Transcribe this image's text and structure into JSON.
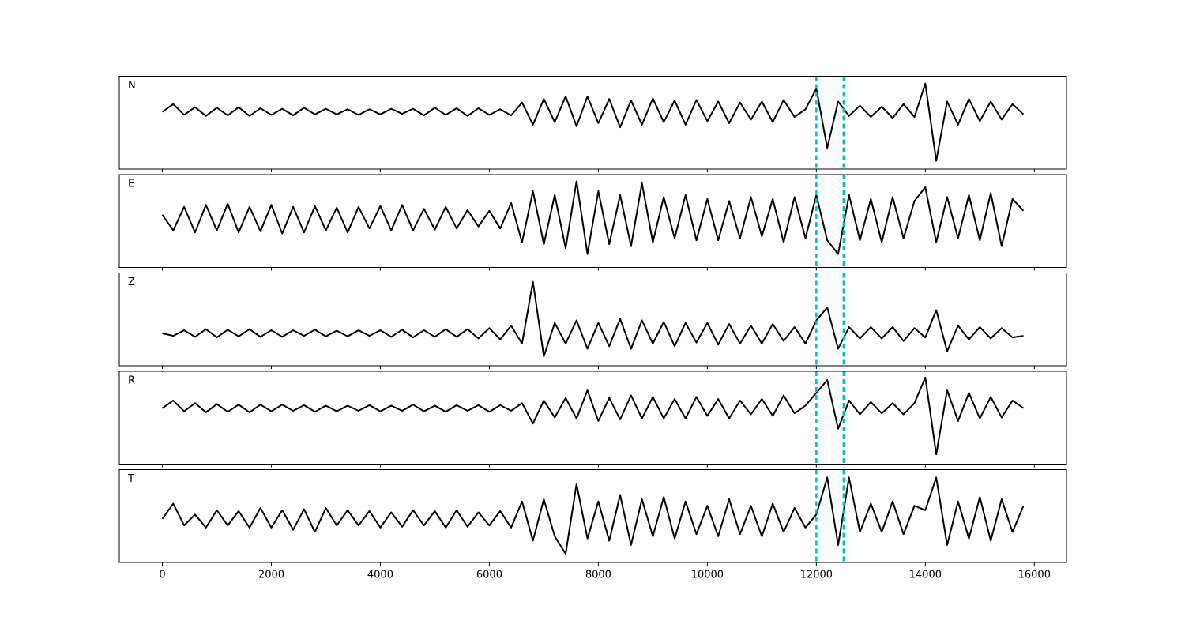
{
  "chart_data": [
    {
      "type": "line",
      "label": "N",
      "color": "#000000",
      "xlim": [
        -790,
        16590
      ],
      "ylim": [
        -1.11,
        0.69
      ],
      "xticks": [
        0,
        2000,
        4000,
        6000,
        8000,
        10000,
        12000,
        14000,
        16000
      ],
      "vlines": [
        12000,
        12500
      ],
      "vline_color": "#00bfbf",
      "x": [
        0,
        200,
        400,
        600,
        800,
        1000,
        1200,
        1400,
        1600,
        1800,
        2000,
        2200,
        2400,
        2600,
        2800,
        3000,
        3200,
        3400,
        3600,
        3800,
        4000,
        4200,
        4400,
        4600,
        4800,
        5000,
        5200,
        5400,
        5600,
        5800,
        6000,
        6200,
        6400,
        6600,
        6800,
        7000,
        7200,
        7400,
        7600,
        7800,
        8000,
        8200,
        8400,
        8600,
        8800,
        9000,
        9200,
        9400,
        9600,
        9800,
        10000,
        10200,
        10400,
        10600,
        10800,
        11000,
        11200,
        11400,
        11600,
        11800,
        12000,
        12200,
        12400,
        12600,
        12800,
        13000,
        13200,
        13400,
        13600,
        13800,
        14000,
        14200,
        14400,
        14600,
        14800,
        15000,
        15200,
        15400,
        15600,
        15800
      ],
      "values": [
        0.0,
        0.15,
        -0.06,
        0.09,
        -0.08,
        0.08,
        -0.07,
        0.09,
        -0.08,
        0.07,
        -0.06,
        0.06,
        -0.07,
        0.08,
        -0.05,
        0.06,
        -0.05,
        0.05,
        -0.06,
        0.05,
        -0.05,
        0.06,
        -0.04,
        0.06,
        -0.07,
        0.08,
        -0.06,
        0.07,
        -0.08,
        0.07,
        -0.06,
        0.05,
        -0.07,
        0.18,
        -0.25,
        0.25,
        -0.2,
        0.3,
        -0.28,
        0.3,
        -0.22,
        0.25,
        -0.3,
        0.22,
        -0.25,
        0.26,
        -0.2,
        0.22,
        -0.25,
        0.23,
        -0.18,
        0.2,
        -0.22,
        0.18,
        -0.15,
        0.2,
        -0.2,
        0.23,
        -0.1,
        0.05,
        0.45,
        -0.7,
        0.2,
        -0.08,
        0.12,
        -0.1,
        0.1,
        -0.12,
        0.15,
        -0.1,
        0.55,
        -0.95,
        0.2,
        -0.25,
        0.25,
        -0.18,
        0.2,
        -0.15,
        0.15,
        -0.05
      ]
    },
    {
      "type": "line",
      "label": "E",
      "color": "#000000",
      "xlim": [
        -790,
        16590
      ],
      "ylim": [
        -1.24,
        1.12
      ],
      "xticks": [
        0,
        2000,
        4000,
        6000,
        8000,
        10000,
        12000,
        14000,
        16000
      ],
      "vlines": [
        12000,
        12500
      ],
      "vline_color": "#00bfbf",
      "x": [
        0,
        200,
        400,
        600,
        800,
        1000,
        1200,
        1400,
        1600,
        1800,
        2000,
        2200,
        2400,
        2600,
        2800,
        3000,
        3200,
        3400,
        3600,
        3800,
        4000,
        4200,
        4400,
        4600,
        4800,
        5000,
        5200,
        5400,
        5600,
        5800,
        6000,
        6200,
        6400,
        6600,
        6800,
        7000,
        7200,
        7400,
        7600,
        7800,
        8000,
        8200,
        8400,
        8600,
        8800,
        9000,
        9200,
        9400,
        9600,
        9800,
        10000,
        10200,
        10400,
        10600,
        10800,
        11000,
        11200,
        11400,
        11600,
        11800,
        12000,
        12200,
        12400,
        12600,
        12800,
        13000,
        13200,
        13400,
        13600,
        13800,
        14000,
        14200,
        14400,
        14600,
        14800,
        15000,
        15200,
        15400,
        15600,
        15800
      ],
      "values": [
        0.1,
        -0.3,
        0.3,
        -0.35,
        0.35,
        -0.3,
        0.38,
        -0.35,
        0.3,
        -0.32,
        0.35,
        -0.38,
        0.3,
        -0.35,
        0.32,
        -0.3,
        0.28,
        -0.35,
        0.3,
        -0.25,
        0.32,
        -0.3,
        0.35,
        -0.3,
        0.25,
        -0.28,
        0.3,
        -0.25,
        0.22,
        -0.2,
        0.2,
        -0.25,
        0.4,
        -0.6,
        0.7,
        -0.65,
        0.6,
        -0.75,
        0.95,
        -0.9,
        0.7,
        -0.65,
        0.6,
        -0.7,
        0.9,
        -0.6,
        0.55,
        -0.5,
        0.6,
        -0.55,
        0.5,
        -0.55,
        0.45,
        -0.5,
        0.55,
        -0.45,
        0.5,
        -0.6,
        0.55,
        -0.5,
        0.6,
        -0.55,
        -0.9,
        0.6,
        -0.55,
        0.5,
        -0.6,
        0.55,
        -0.5,
        0.45,
        0.8,
        -0.6,
        0.55,
        -0.5,
        0.6,
        -0.55,
        0.65,
        -0.7,
        0.5,
        0.2
      ]
    },
    {
      "type": "line",
      "label": "Z",
      "color": "#000000",
      "xlim": [
        -790,
        16590
      ],
      "ylim": [
        -0.63,
        1.17
      ],
      "xticks": [
        0,
        2000,
        4000,
        6000,
        8000,
        10000,
        12000,
        14000,
        16000
      ],
      "vlines": [
        12000,
        12500
      ],
      "vline_color": "#00bfbf",
      "x": [
        0,
        200,
        400,
        600,
        800,
        1000,
        1200,
        1400,
        1600,
        1800,
        2000,
        2200,
        2400,
        2600,
        2800,
        3000,
        3200,
        3400,
        3600,
        3800,
        4000,
        4200,
        4400,
        4600,
        4800,
        5000,
        5200,
        5400,
        5600,
        5800,
        6000,
        6200,
        6400,
        6600,
        6800,
        7000,
        7200,
        7400,
        7600,
        7800,
        8000,
        8200,
        8400,
        8600,
        8800,
        9000,
        9200,
        9400,
        9600,
        9800,
        10000,
        10200,
        10400,
        10600,
        10800,
        11000,
        11200,
        11400,
        11600,
        11800,
        12000,
        12200,
        12400,
        12600,
        12800,
        13000,
        13200,
        13400,
        13600,
        13800,
        14000,
        14200,
        14400,
        14600,
        14800,
        15000,
        15200,
        15400,
        15600,
        15800
      ],
      "values": [
        0.0,
        -0.05,
        0.06,
        -0.07,
        0.08,
        -0.08,
        0.07,
        -0.06,
        0.08,
        -0.07,
        0.06,
        -0.07,
        0.06,
        -0.05,
        0.07,
        -0.06,
        0.05,
        -0.06,
        0.06,
        -0.05,
        0.06,
        -0.07,
        0.07,
        -0.08,
        0.06,
        -0.07,
        0.08,
        -0.07,
        0.08,
        -0.1,
        0.1,
        -0.12,
        0.15,
        -0.2,
        1.0,
        -0.45,
        0.2,
        -0.2,
        0.25,
        -0.3,
        0.2,
        -0.25,
        0.28,
        -0.3,
        0.25,
        -0.2,
        0.22,
        -0.25,
        0.2,
        -0.18,
        0.2,
        -0.22,
        0.18,
        -0.2,
        0.15,
        -0.2,
        0.18,
        -0.15,
        0.12,
        -0.2,
        0.25,
        0.5,
        -0.3,
        0.12,
        -0.1,
        0.12,
        -0.1,
        0.12,
        -0.15,
        0.1,
        -0.08,
        0.45,
        -0.35,
        0.15,
        -0.12,
        0.12,
        -0.1,
        0.1,
        -0.08,
        -0.05
      ]
    },
    {
      "type": "line",
      "label": "R",
      "color": "#000000",
      "xlim": [
        -790,
        16590
      ],
      "ylim": [
        -1.09,
        0.72
      ],
      "xticks": [
        0,
        2000,
        4000,
        6000,
        8000,
        10000,
        12000,
        14000,
        16000
      ],
      "vlines": [
        12000,
        12500
      ],
      "vline_color": "#00bfbf",
      "x": [
        0,
        200,
        400,
        600,
        800,
        1000,
        1200,
        1400,
        1600,
        1800,
        2000,
        2200,
        2400,
        2600,
        2800,
        3000,
        3200,
        3400,
        3600,
        3800,
        4000,
        4200,
        4400,
        4600,
        4800,
        5000,
        5200,
        5400,
        5600,
        5800,
        6000,
        6200,
        6400,
        6600,
        6800,
        7000,
        7200,
        7400,
        7600,
        7800,
        8000,
        8200,
        8400,
        8600,
        8800,
        9000,
        9200,
        9400,
        9600,
        9800,
        10000,
        10200,
        10400,
        10600,
        10800,
        11000,
        11200,
        11400,
        11600,
        11800,
        12000,
        12200,
        12400,
        12600,
        12800,
        13000,
        13200,
        13400,
        13600,
        13800,
        14000,
        14200,
        14400,
        14600,
        14800,
        15000,
        15200,
        15400,
        15600,
        15800
      ],
      "values": [
        0.0,
        0.15,
        -0.06,
        0.1,
        -0.08,
        0.08,
        -0.07,
        0.07,
        -0.08,
        0.07,
        -0.06,
        0.07,
        -0.05,
        0.06,
        -0.07,
        0.05,
        -0.06,
        0.05,
        -0.05,
        0.06,
        -0.06,
        0.05,
        -0.05,
        0.07,
        -0.06,
        0.05,
        -0.07,
        0.06,
        -0.05,
        0.06,
        -0.07,
        0.06,
        -0.05,
        0.1,
        -0.3,
        0.15,
        -0.18,
        0.2,
        -0.2,
        0.35,
        -0.25,
        0.2,
        -0.22,
        0.25,
        -0.2,
        0.22,
        -0.2,
        0.18,
        -0.2,
        0.22,
        -0.15,
        0.18,
        -0.2,
        0.15,
        -0.12,
        0.18,
        -0.15,
        0.25,
        -0.1,
        0.05,
        0.3,
        0.55,
        -0.4,
        0.15,
        -0.12,
        0.12,
        -0.1,
        0.1,
        -0.12,
        0.1,
        0.6,
        -0.9,
        0.35,
        -0.25,
        0.3,
        -0.2,
        0.22,
        -0.18,
        0.15,
        0.0
      ]
    },
    {
      "type": "line",
      "label": "T",
      "color": "#000000",
      "xlim": [
        -790,
        16590
      ],
      "ylim": [
        -1.0,
        1.13
      ],
      "xticks": [
        0,
        2000,
        4000,
        6000,
        8000,
        10000,
        12000,
        14000,
        16000
      ],
      "vlines": [
        12000,
        12500
      ],
      "vline_color": "#00bfbf",
      "x": [
        0,
        200,
        400,
        600,
        800,
        1000,
        1200,
        1400,
        1600,
        1800,
        2000,
        2200,
        2400,
        2600,
        2800,
        3000,
        3200,
        3400,
        3600,
        3800,
        4000,
        4200,
        4400,
        4600,
        4800,
        5000,
        5200,
        5400,
        5600,
        5800,
        6000,
        6200,
        6400,
        6600,
        6800,
        7000,
        7200,
        7400,
        7600,
        7800,
        8000,
        8200,
        8400,
        8600,
        8800,
        9000,
        9200,
        9400,
        9600,
        9800,
        10000,
        10200,
        10400,
        10600,
        10800,
        11000,
        11200,
        11400,
        11600,
        11800,
        12000,
        12200,
        12400,
        12600,
        12800,
        13000,
        13200,
        13400,
        13600,
        13800,
        14000,
        14200,
        14400,
        14600,
        14800,
        15000,
        15200,
        15400,
        15600,
        15800
      ],
      "values": [
        0.0,
        0.35,
        -0.15,
        0.1,
        -0.2,
        0.2,
        -0.15,
        0.18,
        -0.2,
        0.25,
        -0.2,
        0.2,
        -0.25,
        0.22,
        -0.3,
        0.25,
        -0.15,
        0.2,
        -0.15,
        0.18,
        -0.2,
        0.15,
        -0.18,
        0.2,
        -0.15,
        0.18,
        -0.2,
        0.2,
        -0.18,
        0.15,
        -0.15,
        0.18,
        -0.2,
        0.4,
        -0.5,
        0.45,
        -0.4,
        -0.8,
        0.8,
        -0.45,
        0.4,
        -0.5,
        0.55,
        -0.6,
        0.45,
        -0.4,
        0.5,
        -0.45,
        0.4,
        -0.35,
        0.3,
        -0.4,
        0.45,
        -0.35,
        0.3,
        -0.4,
        0.35,
        -0.3,
        0.25,
        -0.2,
        0.1,
        0.95,
        -0.6,
        0.95,
        -0.3,
        0.35,
        -0.3,
        0.4,
        -0.35,
        0.3,
        0.2,
        0.95,
        -0.6,
        0.4,
        -0.45,
        0.5,
        -0.5,
        0.45,
        -0.3,
        0.3
      ]
    }
  ]
}
